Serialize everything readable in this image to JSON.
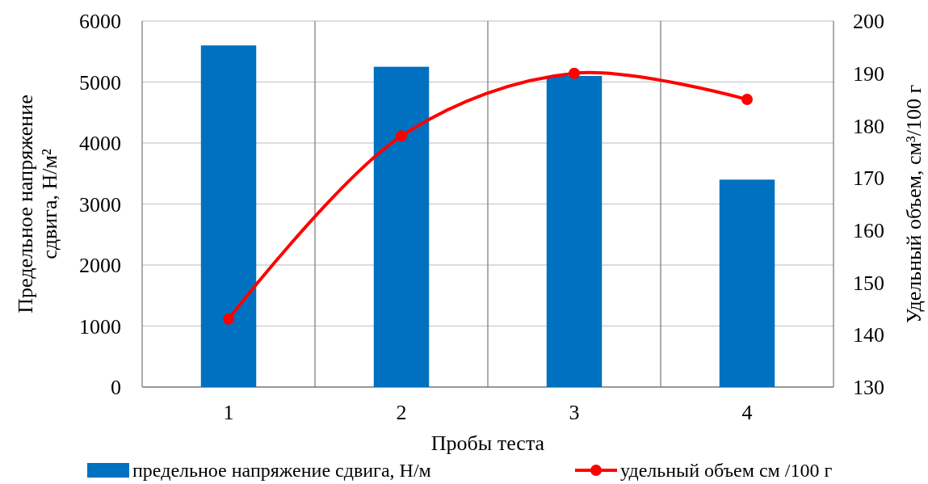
{
  "chart_data": {
    "type": "bar",
    "xlabel": "Пробы теста",
    "ylabel": "Предельное напряжение сдвига, Н/м²",
    "y2label": "Удельный объем, см³/100 г",
    "categories": [
      "1",
      "2",
      "3",
      "4"
    ],
    "series": [
      {
        "name": "предельное напряжение сдвига, Н/м",
        "color": "#0070c0",
        "values": [
          5600,
          5250,
          5100,
          3400
        ]
      },
      {
        "name": "удельный объем см /100 г",
        "type": "line",
        "axis": "y2",
        "color": "#ff0000",
        "values": [
          143,
          178,
          190,
          185
        ],
        "marker": "circle"
      }
    ],
    "ylim": [
      0,
      6000
    ],
    "yticks": [
      0,
      1000,
      2000,
      3000,
      4000,
      5000,
      6000
    ],
    "y2lim": [
      130,
      200
    ],
    "y2ticks": [
      130,
      140,
      150,
      160,
      170,
      180,
      190,
      200
    ],
    "grid": true,
    "legend": "bottom"
  }
}
